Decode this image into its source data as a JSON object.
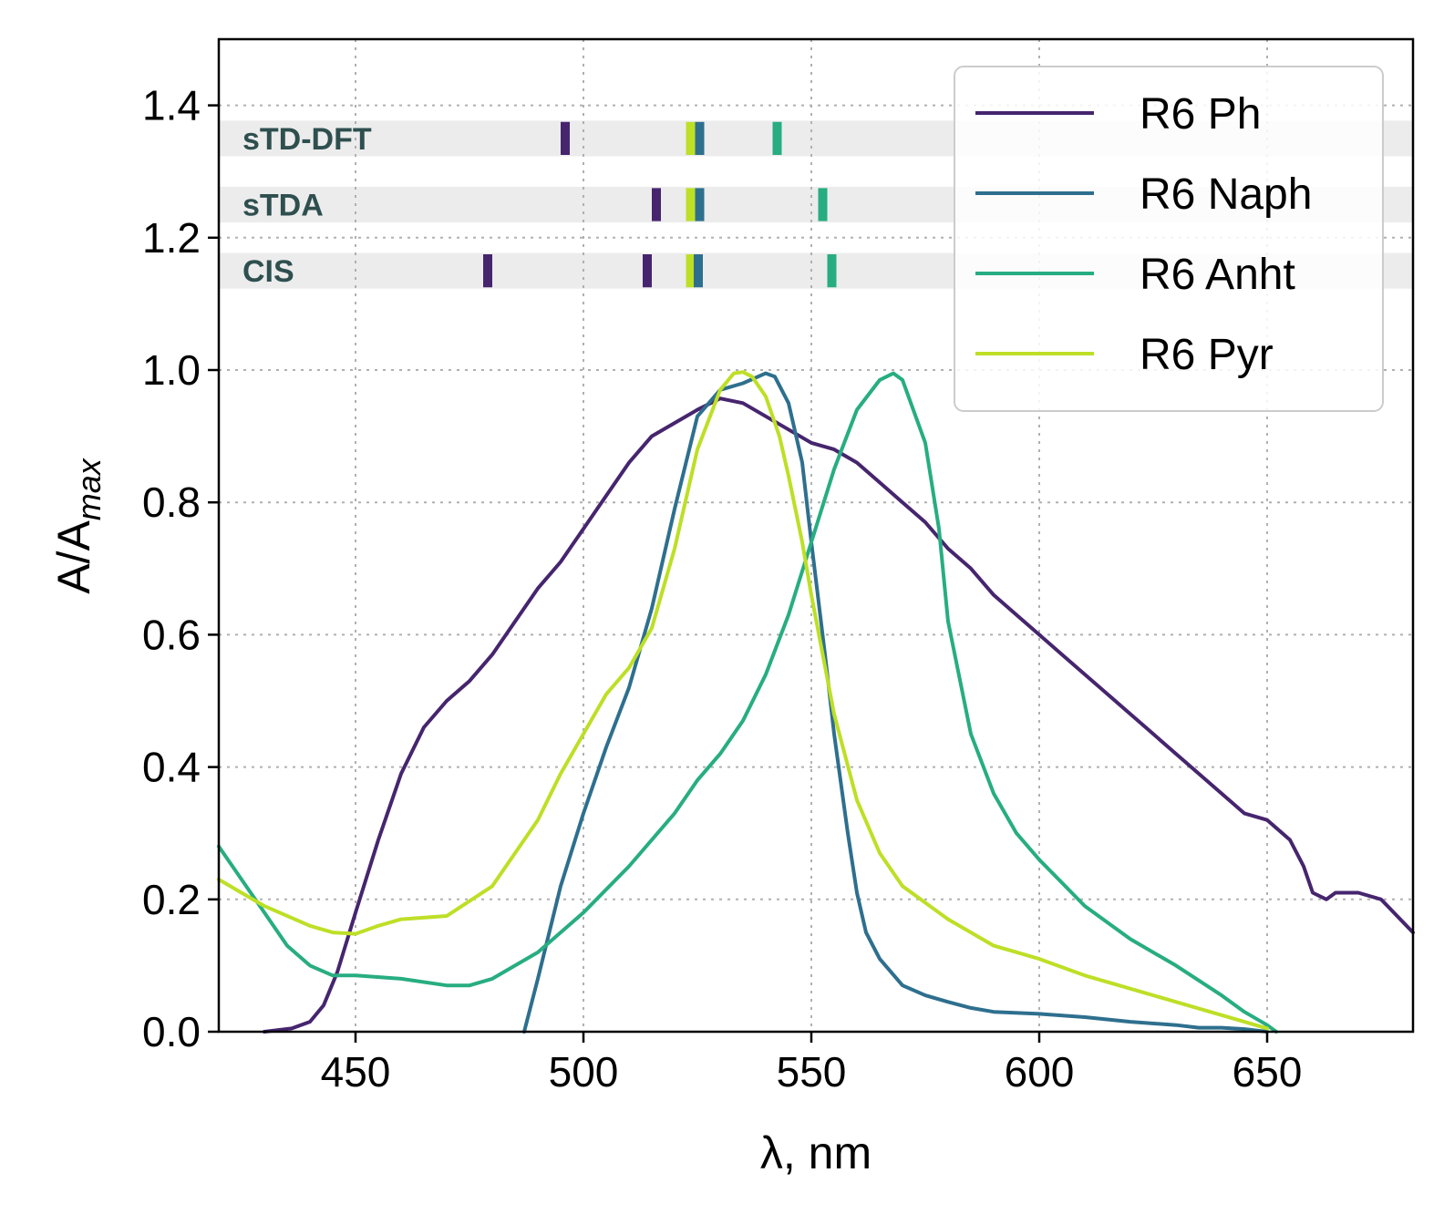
{
  "chart_data": {
    "type": "line",
    "title": "",
    "xlabel": "λ, nm",
    "ylabel": "A/A",
    "ylabel_sub": "max",
    "xlim": [
      420,
      682
    ],
    "ylim": [
      0,
      1.5
    ],
    "xticks": [
      450,
      500,
      550,
      600,
      650
    ],
    "yticks": [
      0.0,
      0.2,
      0.4,
      0.6,
      0.8,
      1.0,
      1.2,
      1.4
    ],
    "xtick_labels": [
      "450",
      "500",
      "550",
      "600",
      "650"
    ],
    "ytick_labels": [
      "0.0",
      "0.2",
      "0.4",
      "0.6",
      "0.8",
      "1.0",
      "1.2",
      "1.4"
    ],
    "grid": true,
    "legend_position": "top-right",
    "series": [
      {
        "name": "R6 Ph",
        "color": "#46256e",
        "x": [
          430,
          436,
          440,
          443,
          446,
          450,
          455,
          460,
          465,
          470,
          475,
          480,
          485,
          490,
          495,
          500,
          505,
          510,
          515,
          520,
          525,
          530,
          535,
          540,
          545,
          550,
          555,
          560,
          565,
          570,
          575,
          580,
          585,
          590,
          595,
          600,
          605,
          610,
          615,
          620,
          625,
          630,
          635,
          640,
          645,
          650,
          655,
          658,
          660,
          663,
          665,
          670,
          675,
          682
        ],
        "y": [
          0.0,
          0.005,
          0.015,
          0.04,
          0.09,
          0.18,
          0.29,
          0.39,
          0.46,
          0.5,
          0.53,
          0.57,
          0.62,
          0.67,
          0.71,
          0.76,
          0.81,
          0.86,
          0.9,
          0.92,
          0.94,
          0.957,
          0.95,
          0.93,
          0.91,
          0.89,
          0.88,
          0.86,
          0.83,
          0.8,
          0.77,
          0.73,
          0.7,
          0.66,
          0.63,
          0.6,
          0.57,
          0.54,
          0.51,
          0.48,
          0.45,
          0.42,
          0.39,
          0.36,
          0.33,
          0.32,
          0.29,
          0.25,
          0.21,
          0.2,
          0.21,
          0.21,
          0.2,
          0.15
        ]
      },
      {
        "name": "R6 Naph",
        "color": "#2e6f8e",
        "x": [
          487,
          490,
          495,
          500,
          505,
          510,
          515,
          520,
          525,
          530,
          535,
          540,
          542,
          545,
          548,
          550,
          553,
          555,
          558,
          560,
          562,
          565,
          570,
          575,
          580,
          585,
          590,
          600,
          610,
          620,
          630,
          635,
          640,
          645,
          650
        ],
        "y": [
          0.0,
          0.08,
          0.22,
          0.33,
          0.43,
          0.52,
          0.64,
          0.79,
          0.93,
          0.97,
          0.98,
          0.995,
          0.99,
          0.95,
          0.86,
          0.74,
          0.57,
          0.45,
          0.3,
          0.21,
          0.15,
          0.11,
          0.07,
          0.055,
          0.045,
          0.036,
          0.03,
          0.027,
          0.022,
          0.015,
          0.01,
          0.006,
          0.006,
          0.004,
          0.0
        ]
      },
      {
        "name": "R6 Anht",
        "color": "#27ad81",
        "x": [
          420,
          425,
          430,
          435,
          440,
          445,
          450,
          460,
          470,
          475,
          480,
          490,
          500,
          510,
          520,
          525,
          530,
          535,
          540,
          545,
          550,
          555,
          560,
          565,
          568,
          570,
          575,
          578,
          580,
          585,
          590,
          595,
          600,
          610,
          620,
          630,
          640,
          645,
          650,
          652
        ],
        "y": [
          0.28,
          0.23,
          0.18,
          0.13,
          0.1,
          0.085,
          0.085,
          0.08,
          0.07,
          0.07,
          0.08,
          0.12,
          0.18,
          0.25,
          0.33,
          0.38,
          0.42,
          0.47,
          0.54,
          0.63,
          0.74,
          0.85,
          0.94,
          0.985,
          0.995,
          0.985,
          0.89,
          0.76,
          0.62,
          0.45,
          0.36,
          0.3,
          0.26,
          0.19,
          0.14,
          0.1,
          0.055,
          0.03,
          0.01,
          0.0
        ]
      },
      {
        "name": "R6 Pyr",
        "color": "#bddf26",
        "x": [
          420,
          430,
          440,
          445,
          450,
          455,
          460,
          470,
          480,
          490,
          495,
          500,
          505,
          510,
          515,
          520,
          525,
          530,
          533,
          535,
          537,
          540,
          543,
          545,
          548,
          550,
          555,
          560,
          565,
          570,
          580,
          590,
          600,
          610,
          620,
          630,
          640,
          645,
          650
        ],
        "y": [
          0.23,
          0.19,
          0.16,
          0.15,
          0.148,
          0.16,
          0.17,
          0.175,
          0.22,
          0.32,
          0.39,
          0.45,
          0.51,
          0.55,
          0.61,
          0.73,
          0.88,
          0.97,
          0.995,
          0.997,
          0.99,
          0.96,
          0.9,
          0.84,
          0.74,
          0.66,
          0.48,
          0.35,
          0.27,
          0.22,
          0.17,
          0.13,
          0.11,
          0.085,
          0.065,
          0.045,
          0.025,
          0.015,
          0.005
        ]
      }
    ],
    "method_bands": [
      {
        "label": "sTD-DFT",
        "y": 1.35
      },
      {
        "label": "sTDA",
        "y": 1.25
      },
      {
        "label": "CIS",
        "y": 1.15
      }
    ],
    "transitions": [
      {
        "method": "sTD-DFT",
        "series": "R6 Ph",
        "x": 496
      },
      {
        "method": "sTD-DFT",
        "series": "R6 Pyr",
        "x": 523.5
      },
      {
        "method": "sTD-DFT",
        "series": "R6 Naph",
        "x": 525.5
      },
      {
        "method": "sTD-DFT",
        "series": "R6 Anht",
        "x": 542.5
      },
      {
        "method": "sTDA",
        "series": "R6 Ph",
        "x": 516
      },
      {
        "method": "sTDA",
        "series": "R6 Pyr",
        "x": 523.5
      },
      {
        "method": "sTDA",
        "series": "R6 Naph",
        "x": 525.5
      },
      {
        "method": "sTDA",
        "series": "R6 Anht",
        "x": 552.5
      },
      {
        "method": "CIS",
        "series": "R6 Ph",
        "x": 479
      },
      {
        "method": "CIS",
        "series": "R6 Ph",
        "x": 514
      },
      {
        "method": "CIS",
        "series": "R6 Pyr",
        "x": 523.5
      },
      {
        "method": "CIS",
        "series": "R6 Naph",
        "x": 525.2
      },
      {
        "method": "CIS",
        "series": "R6 Anht",
        "x": 554.5
      }
    ]
  }
}
